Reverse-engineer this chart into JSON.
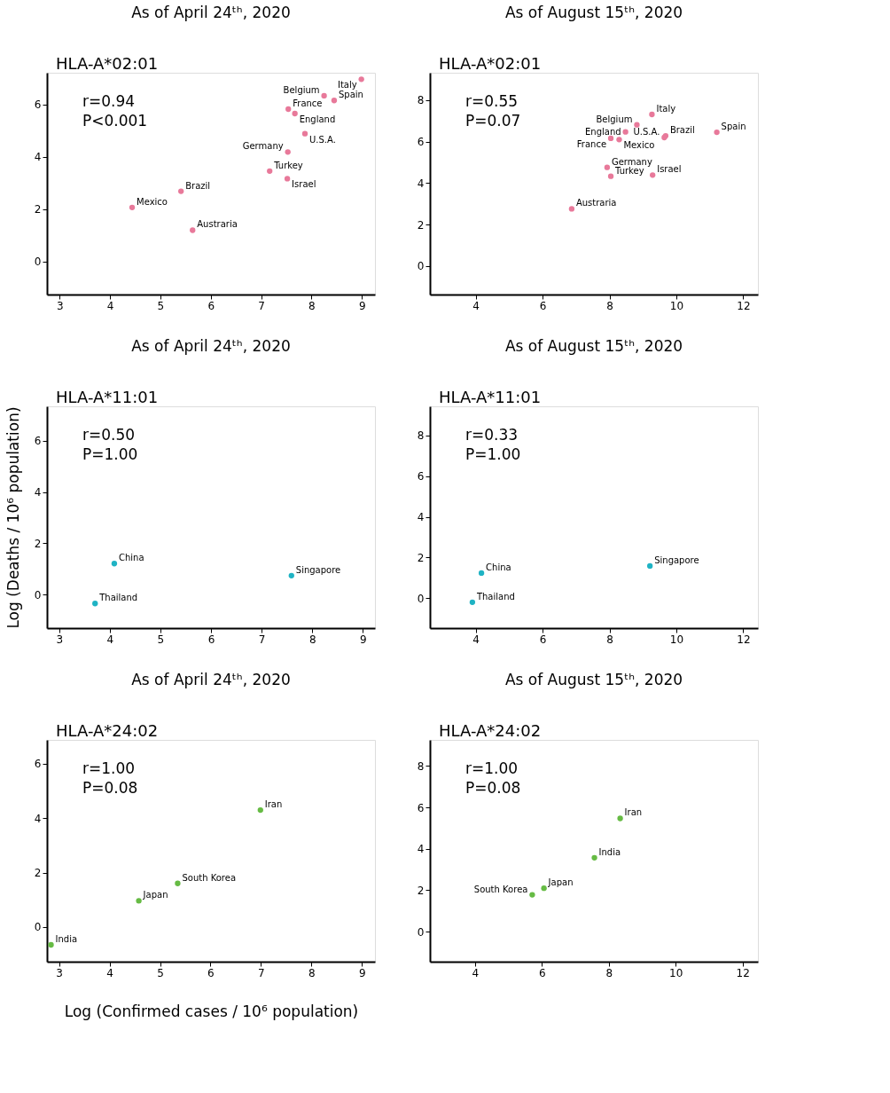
{
  "chart_data": [
    {
      "type": "scatter",
      "title": "As of April 24ᵗʰ, 2020",
      "annotations": [
        "HLA-A*02:01",
        "r=0.94",
        "P<0.001"
      ],
      "xlim": [
        2.75,
        9.26
      ],
      "ylim": [
        -1.26,
        7.22
      ],
      "xticks": [
        3,
        4,
        5,
        6,
        7,
        8,
        9
      ],
      "yticks": [
        0,
        2,
        4,
        6
      ],
      "grid": false,
      "marker": "circle",
      "series": [
        {
          "name": "Italy",
          "color": "#e8799a",
          "x": [
            8.99
          ],
          "values": [
            6.97
          ]
        },
        {
          "name": "Belgium",
          "color": "#e8799a",
          "x": [
            8.25
          ],
          "values": [
            6.34
          ]
        },
        {
          "name": "Spain",
          "color": "#e8799a",
          "x": [
            8.45
          ],
          "values": [
            6.16
          ]
        },
        {
          "name": "France",
          "color": "#e8799a",
          "x": [
            7.54
          ],
          "values": [
            5.83
          ]
        },
        {
          "name": "England",
          "color": "#e8799a",
          "x": [
            7.67
          ],
          "values": [
            5.66
          ]
        },
        {
          "name": "U.S.A.",
          "color": "#e8799a",
          "x": [
            7.87
          ],
          "values": [
            4.89
          ]
        },
        {
          "name": "Germany",
          "color": "#e8799a",
          "x": [
            7.53
          ],
          "values": [
            4.19
          ]
        },
        {
          "name": "Turkey",
          "color": "#e8799a",
          "x": [
            7.17
          ],
          "values": [
            3.46
          ]
        },
        {
          "name": "Israel",
          "color": "#e8799a",
          "x": [
            7.52
          ],
          "values": [
            3.17
          ]
        },
        {
          "name": "Brazil",
          "color": "#e8799a",
          "x": [
            5.41
          ],
          "values": [
            2.69
          ]
        },
        {
          "name": "Mexico",
          "color": "#e8799a",
          "x": [
            4.44
          ],
          "values": [
            2.07
          ]
        },
        {
          "name": "Austraria",
          "color": "#e8799a",
          "x": [
            5.64
          ],
          "values": [
            1.2
          ]
        }
      ]
    },
    {
      "type": "scatter",
      "title": "As of August 15ᵗʰ, 2020",
      "annotations": [
        "HLA-A*02:01",
        "r=0.55",
        "P=0.07"
      ],
      "xlim": [
        2.63,
        12.44
      ],
      "ylim": [
        -1.37,
        9.32
      ],
      "xticks": [
        4,
        6,
        8,
        10,
        12
      ],
      "yticks": [
        0,
        2,
        4,
        6,
        8
      ],
      "grid": false,
      "marker": "circle",
      "series": [
        {
          "name": "Italy",
          "color": "#e8799a",
          "x": [
            9.27
          ],
          "values": [
            7.31
          ]
        },
        {
          "name": "Belgium",
          "color": "#e8799a",
          "x": [
            8.82
          ],
          "values": [
            6.81
          ]
        },
        {
          "name": "England",
          "color": "#e8799a",
          "x": [
            8.48
          ],
          "values": [
            6.47
          ]
        },
        {
          "name": "France",
          "color": "#e8799a",
          "x": [
            8.04
          ],
          "values": [
            6.16
          ]
        },
        {
          "name": "Mexico",
          "color": "#e8799a",
          "x": [
            8.29
          ],
          "values": [
            6.1
          ]
        },
        {
          "name": "Brazil",
          "color": "#e8799a",
          "x": [
            9.68
          ],
          "values": [
            6.28
          ]
        },
        {
          "name": "U.S.A.",
          "color": "#e8799a",
          "x": [
            9.64
          ],
          "values": [
            6.2
          ]
        },
        {
          "name": "Spain",
          "color": "#e8799a",
          "x": [
            11.21
          ],
          "values": [
            6.45
          ]
        },
        {
          "name": "Germany",
          "color": "#e8799a",
          "x": [
            7.93
          ],
          "values": [
            4.76
          ]
        },
        {
          "name": "Turkey",
          "color": "#e8799a",
          "x": [
            8.04
          ],
          "values": [
            4.33
          ]
        },
        {
          "name": "Israel",
          "color": "#e8799a",
          "x": [
            9.29
          ],
          "values": [
            4.39
          ]
        },
        {
          "name": "Austraria",
          "color": "#e8799a",
          "x": [
            6.87
          ],
          "values": [
            2.76
          ]
        }
      ]
    },
    {
      "type": "scatter",
      "title": "As of April 24ᵗʰ, 2020",
      "ylabel": "Log (Deaths / 10⁶ population)",
      "annotations": [
        "HLA-A*11:01",
        "r=0.50",
        "P=1.00"
      ],
      "xlim": [
        2.76,
        9.24
      ],
      "ylim": [
        -1.31,
        7.35
      ],
      "xticks": [
        3,
        4,
        5,
        6,
        7,
        8,
        9
      ],
      "yticks": [
        0,
        2,
        4,
        6
      ],
      "grid": false,
      "marker": "circle",
      "series": [
        {
          "name": "China",
          "color": "#1fb3c4",
          "x": [
            4.09
          ],
          "values": [
            1.21
          ]
        },
        {
          "name": "Thailand",
          "color": "#1fb3c4",
          "x": [
            3.71
          ],
          "values": [
            -0.35
          ]
        },
        {
          "name": "Singapore",
          "color": "#1fb3c4",
          "x": [
            7.59
          ],
          "values": [
            0.74
          ]
        }
      ]
    },
    {
      "type": "scatter",
      "title": "As of August 15ᵗʰ, 2020",
      "annotations": [
        "HLA-A*11:01",
        "r=0.33",
        "P=1.00"
      ],
      "xlim": [
        2.63,
        12.44
      ],
      "ylim": [
        -1.46,
        9.42
      ],
      "xticks": [
        4,
        6,
        8,
        10,
        12
      ],
      "yticks": [
        0,
        2,
        4,
        6,
        8
      ],
      "grid": false,
      "marker": "circle",
      "series": [
        {
          "name": "China",
          "color": "#1fb3c4",
          "x": [
            4.17
          ],
          "values": [
            1.24
          ]
        },
        {
          "name": "Thailand",
          "color": "#1fb3c4",
          "x": [
            3.9
          ],
          "values": [
            -0.19
          ]
        },
        {
          "name": "Singapore",
          "color": "#1fb3c4",
          "x": [
            9.21
          ],
          "values": [
            1.59
          ]
        }
      ]
    },
    {
      "type": "scatter",
      "title": "As of April 24ᵗʰ, 2020",
      "xlabel": "Log (Confirmed cases / 10⁶ population)",
      "annotations": [
        "HLA-A*24:02",
        "r=1.00",
        "P=0.08"
      ],
      "xlim": [
        2.76,
        9.26
      ],
      "ylim": [
        -1.28,
        6.88
      ],
      "xticks": [
        3,
        4,
        5,
        6,
        7,
        8,
        9
      ],
      "yticks": [
        0,
        2,
        4,
        6
      ],
      "grid": false,
      "marker": "circle",
      "series": [
        {
          "name": "India",
          "color": "#66bb44",
          "x": [
            2.84
          ],
          "values": [
            -0.66
          ]
        },
        {
          "name": "Japan",
          "color": "#66bb44",
          "x": [
            4.58
          ],
          "values": [
            0.96
          ]
        },
        {
          "name": "South Korea",
          "color": "#66bb44",
          "x": [
            5.35
          ],
          "values": [
            1.6
          ]
        },
        {
          "name": "Iran",
          "color": "#66bb44",
          "x": [
            6.99
          ],
          "values": [
            4.3
          ]
        }
      ]
    },
    {
      "type": "scatter",
      "title": "As of August 15ᵗʰ, 2020",
      "annotations": [
        "HLA-A*24:02",
        "r=1.00",
        "P=0.08"
      ],
      "xlim": [
        2.65,
        12.46
      ],
      "ylim": [
        -1.45,
        9.26
      ],
      "xticks": [
        4,
        6,
        8,
        10,
        12
      ],
      "yticks": [
        0,
        2,
        4,
        6,
        8
      ],
      "grid": false,
      "marker": "circle",
      "series": [
        {
          "name": "Iran",
          "color": "#66bb44",
          "x": [
            8.34
          ],
          "values": [
            5.47
          ]
        },
        {
          "name": "India",
          "color": "#66bb44",
          "x": [
            7.57
          ],
          "values": [
            3.57
          ]
        },
        {
          "name": "Japan",
          "color": "#66bb44",
          "x": [
            6.06
          ],
          "values": [
            2.1
          ]
        },
        {
          "name": "South Korea",
          "color": "#66bb44",
          "x": [
            5.71
          ],
          "values": [
            1.78
          ]
        }
      ]
    }
  ]
}
